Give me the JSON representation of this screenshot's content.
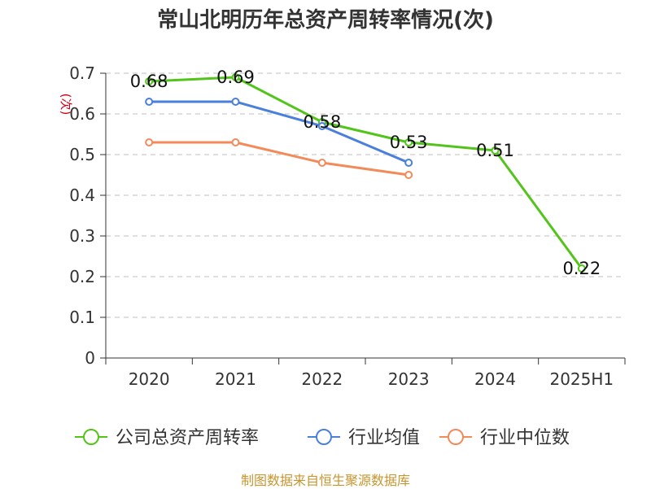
{
  "title": "常山北明历年总资产周转率情况(次)",
  "source": "制图数据来自恒生聚源数据库",
  "chart_data": {
    "type": "line",
    "categories": [
      "2020",
      "2021",
      "2022",
      "2023",
      "2024",
      "2025H1"
    ],
    "ylabel": "(次)",
    "ylim": [
      0,
      0.7
    ],
    "yticks": [
      "0",
      "0.1",
      "0.2",
      "0.3",
      "0.4",
      "0.5",
      "0.6",
      "0.7"
    ],
    "grid": true,
    "legend_position": "bottom",
    "series": [
      {
        "name": "公司总资产周转率",
        "color": "#52c41a",
        "values": [
          0.68,
          0.69,
          0.58,
          0.53,
          0.51,
          0.22
        ],
        "show_labels": true
      },
      {
        "name": "行业均值",
        "color": "#4a7fdb",
        "values": [
          0.63,
          0.63,
          0.57,
          0.48,
          null,
          null
        ],
        "show_labels": false
      },
      {
        "name": "行业中位数",
        "color": "#f28a5a",
        "values": [
          0.53,
          0.53,
          0.48,
          0.45,
          null,
          null
        ],
        "show_labels": false
      }
    ]
  }
}
